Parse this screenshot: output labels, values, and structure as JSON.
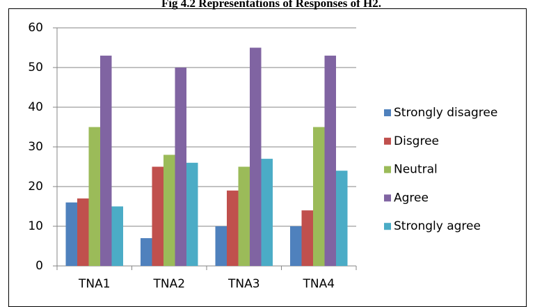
{
  "chart_data": {
    "type": "bar",
    "title": "Fig 4.2 Representations of Responses of H2.",
    "categories": [
      "TNA1",
      "TNA2",
      "TNA3",
      "TNA4"
    ],
    "series": [
      {
        "name": "Strongly disagree",
        "color": "#4f81bd",
        "values": [
          16,
          7,
          10,
          10
        ]
      },
      {
        "name": "Disgree",
        "color": "#c0504d",
        "values": [
          17,
          25,
          19,
          14
        ]
      },
      {
        "name": "Neutral",
        "color": "#9bbb59",
        "values": [
          35,
          28,
          25,
          35
        ]
      },
      {
        "name": "Agree",
        "color": "#8064a2",
        "values": [
          53,
          50,
          55,
          53
        ]
      },
      {
        "name": "Strongly agree",
        "color": "#4bacc6",
        "values": [
          15,
          26,
          27,
          24
        ]
      }
    ],
    "ylim": [
      0,
      60
    ],
    "yticks": [
      0,
      10,
      20,
      30,
      40,
      50,
      60
    ],
    "grid": true,
    "legend": "right"
  }
}
